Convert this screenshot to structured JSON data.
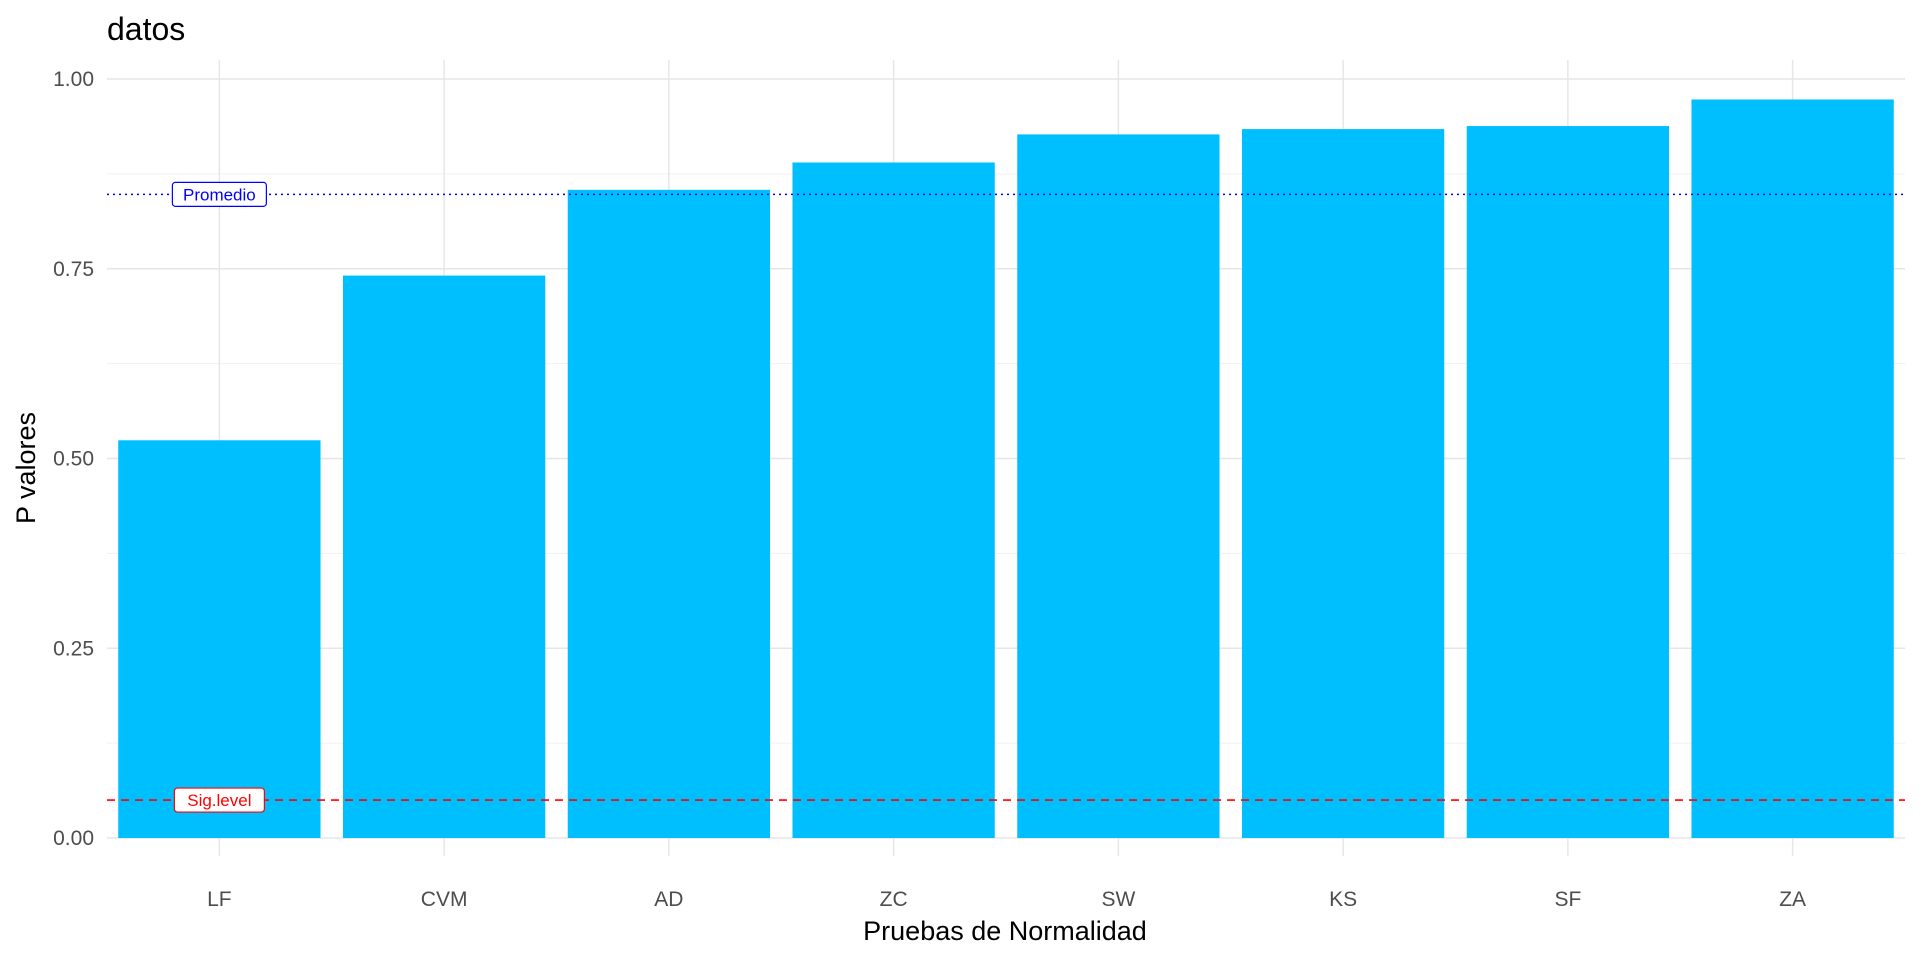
{
  "chart_data": {
    "type": "bar",
    "title": "datos",
    "xlabel": "Pruebas de Normalidad",
    "ylabel": "P valores",
    "categories": [
      "LF",
      "CVM",
      "AD",
      "ZC",
      "SW",
      "KS",
      "SF",
      "ZA"
    ],
    "values": [
      0.524,
      0.741,
      0.854,
      0.89,
      0.927,
      0.934,
      0.938,
      0.973
    ],
    "ylim": [
      0,
      1
    ],
    "y_ticks": [
      "0.00",
      "0.25",
      "0.50",
      "0.75",
      "1.00"
    ],
    "y_tick_values": [
      0,
      0.25,
      0.5,
      0.75,
      1.0
    ],
    "grid": true,
    "bar_color": "#00BFFF",
    "reference_lines": [
      {
        "label": "Promedio",
        "value": 0.848,
        "color": "#0000FF",
        "style": "dotted"
      },
      {
        "label": "Sig.level",
        "value": 0.05,
        "color": "#FF0000",
        "style": "dashed"
      }
    ]
  }
}
